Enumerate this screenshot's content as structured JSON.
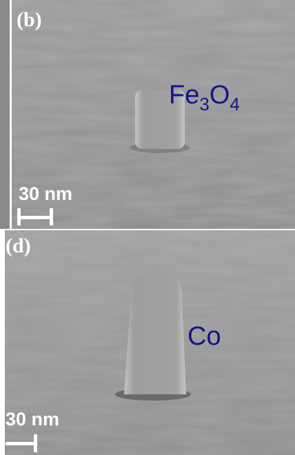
{
  "panels": [
    {
      "label": "(b)",
      "material": [
        "Fe",
        "3",
        "O",
        "4"
      ],
      "scale_bar": "30 nm"
    },
    {
      "label": "(d)",
      "material": [
        "Co"
      ],
      "scale_bar": "30 nm"
    }
  ]
}
